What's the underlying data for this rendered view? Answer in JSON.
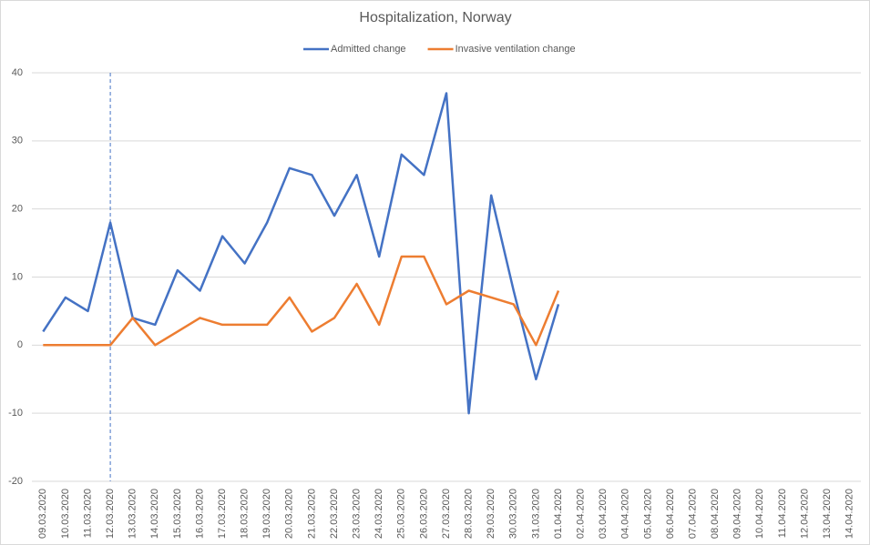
{
  "chart_data": {
    "type": "line",
    "title": "Hospitalization, Norway",
    "categories": [
      "09.03.2020",
      "10.03.2020",
      "11.03.2020",
      "12.03.2020",
      "13.03.2020",
      "14.03.2020",
      "15.03.2020",
      "16.03.2020",
      "17.03.2020",
      "18.03.2020",
      "19.03.2020",
      "20.03.2020",
      "21.03.2020",
      "22.03.2020",
      "23.03.2020",
      "24.03.2020",
      "25.03.2020",
      "26.03.2020",
      "27.03.2020",
      "28.03.2020",
      "29.03.2020",
      "30.03.2020",
      "31.03.2020",
      "01.04.2020",
      "02.04.2020",
      "03.04.2020",
      "04.04.2020",
      "05.04.2020",
      "06.04.2020",
      "07.04.2020",
      "08.04.2020",
      "09.04.2020",
      "10.04.2020",
      "11.04.2020",
      "12.04.2020",
      "13.04.2020",
      "14.04.2020"
    ],
    "series": [
      {
        "name": "Admitted change",
        "color": "#4472c4",
        "values": [
          2,
          7,
          5,
          18,
          4,
          3,
          11,
          8,
          16,
          12,
          18,
          26,
          25,
          19,
          25,
          13,
          28,
          25,
          37,
          -10,
          22,
          8,
          -5,
          6,
          null,
          null,
          null,
          null,
          null,
          null,
          null,
          null,
          null,
          null,
          null,
          null,
          null
        ]
      },
      {
        "name": "Invasive ventilation change",
        "color": "#ed7d31",
        "values": [
          0,
          0,
          0,
          0,
          4,
          0,
          2,
          4,
          3,
          3,
          3,
          7,
          2,
          4,
          9,
          3,
          13,
          13,
          6,
          8,
          7,
          6,
          0,
          8,
          null,
          null,
          null,
          null,
          null,
          null,
          null,
          null,
          null,
          null,
          null,
          null,
          null
        ]
      }
    ],
    "ylim": [
      -20,
      40
    ],
    "yticks": [
      -20,
      -10,
      0,
      10,
      20,
      30,
      40
    ],
    "grid": true,
    "legend": "top",
    "vline": "12.03.2020"
  }
}
